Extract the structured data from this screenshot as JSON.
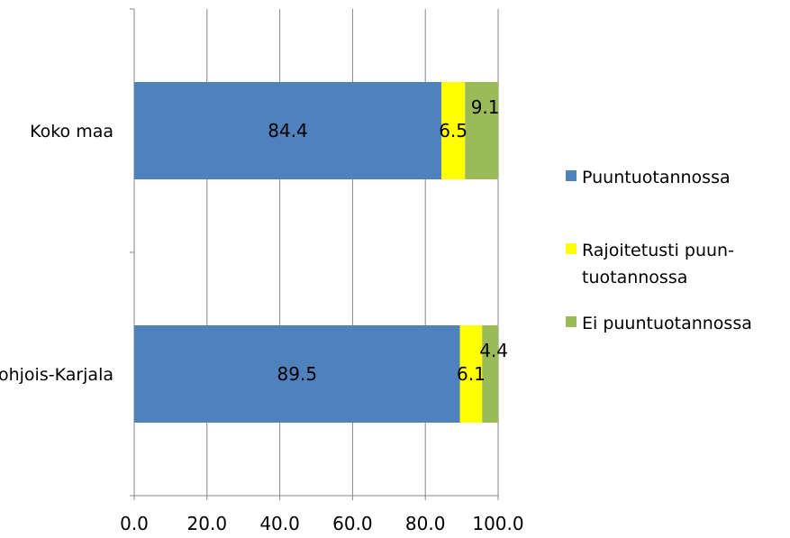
{
  "chart_data": {
    "type": "bar",
    "orientation": "horizontal",
    "stacked": true,
    "categories": [
      "Koko maa",
      "Pohjois-Karjala"
    ],
    "series": [
      {
        "name": "Puuntuotannossa",
        "values": [
          84.4,
          89.5
        ],
        "labels": [
          "84.4",
          "89.5"
        ],
        "color": "#4f81bd"
      },
      {
        "name": "Rajoitetusti puun-tuotannossa",
        "values": [
          6.5,
          6.1
        ],
        "labels": [
          "6.5",
          "6.1"
        ],
        "color": "#ffff00"
      },
      {
        "name": "Ei puuntuotannossa",
        "values": [
          9.1,
          4.4
        ],
        "labels": [
          "9.1",
          "4.4"
        ],
        "color": "#9bbb59"
      }
    ],
    "xlim": [
      0,
      100
    ],
    "x_ticks": [
      "0.0",
      "20.0",
      "40.0",
      "60.0",
      "80.0",
      "100.0"
    ],
    "grid": "vertical",
    "legend": {
      "placement": "right",
      "entries": [
        {
          "lines": [
            "Puuntuotannossa"
          ],
          "color": "#4f81bd"
        },
        {
          "lines": [
            "Rajoitetusti puun-",
            "tuotannossa"
          ],
          "color": "#ffff00"
        },
        {
          "lines": [
            "Ei puuntuotannossa"
          ],
          "color": "#9bbb59"
        }
      ]
    }
  }
}
